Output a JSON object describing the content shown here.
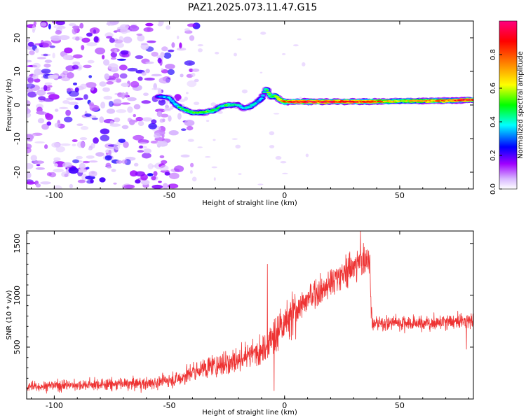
{
  "title": "PAZ1.2025.073.11.47.G15",
  "chart_data": [
    {
      "type": "heatmap",
      "xlabel": "Height of straight line (km)",
      "ylabel": "Frequency (Hz)",
      "xlim": [
        -112,
        82
      ],
      "ylim": [
        -25,
        25
      ],
      "xticks": [
        -100,
        -50,
        0,
        50
      ],
      "yticks": [
        -20,
        -10,
        0,
        10,
        20
      ],
      "colorbar": {
        "label": "Normalized spectral amplitude",
        "range": [
          0,
          1
        ],
        "ticks": [
          "0.0",
          "0.2",
          "0.4",
          "0.6",
          "0.8"
        ],
        "colormap": [
          "#ffffff",
          "#a000ff",
          "#0000ff",
          "#00ffff",
          "#00ff00",
          "#ffff00",
          "#ff8000",
          "#ff0000",
          "#ff0080"
        ]
      },
      "ridge": {
        "x": [
          -55,
          -50,
          -48,
          -45,
          -40,
          -35,
          -30,
          -28,
          -25,
          -20,
          -18,
          -15,
          -12,
          -10,
          -8,
          -6,
          -4,
          -2,
          0,
          5,
          10,
          20,
          30,
          40,
          50,
          60,
          70,
          80
        ],
        "freq": [
          2.5,
          2.2,
          0.5,
          -1,
          -2.3,
          -2.2,
          -1.5,
          -0.5,
          0,
          0,
          -1,
          -0.5,
          0.8,
          2,
          5,
          2.5,
          2.7,
          1.5,
          1,
          1,
          1,
          1,
          1,
          1,
          1.2,
          1.2,
          1.3,
          1.5
        ],
        "amplitude": [
          0.3,
          0.35,
          0.35,
          0.45,
          0.5,
          0.55,
          0.45,
          0.4,
          0.5,
          0.4,
          0.35,
          0.45,
          0.35,
          0.35,
          0.5,
          0.5,
          0.55,
          0.7,
          0.75,
          0.85,
          0.9,
          0.85,
          0.85,
          0.8,
          0.6,
          0.7,
          0.75,
          0.85
        ]
      },
      "noise_region_x": [
        -112,
        -50
      ]
    },
    {
      "type": "line",
      "xlabel": "Height of straight line (km)",
      "ylabel": "SNR (10 * v/v)",
      "xlim": [
        -112,
        82
      ],
      "ylim": [
        0,
        1620
      ],
      "xticks": [
        -100,
        -50,
        0,
        50
      ],
      "yticks": [
        500,
        1000,
        1500
      ],
      "color": "#ee3333",
      "trend": {
        "x": [
          -112,
          -100,
          -80,
          -60,
          -55,
          -50,
          -45,
          -40,
          -35,
          -30,
          -25,
          -20,
          -15,
          -10,
          -8,
          -5,
          0,
          5,
          10,
          20,
          30,
          36,
          37,
          38,
          50,
          60,
          70,
          82
        ],
        "y": [
          120,
          130,
          140,
          150,
          160,
          180,
          200,
          260,
          300,
          320,
          350,
          380,
          420,
          480,
          530,
          600,
          700,
          850,
          960,
          1120,
          1280,
          1350,
          1300,
          720,
          740,
          730,
          740,
          760
        ]
      },
      "spikes": [
        {
          "x": -7.5,
          "y": 1300
        },
        {
          "x": -4.5,
          "y": 80
        },
        {
          "x": 33,
          "y": 1620
        },
        {
          "x": 79,
          "y": 480
        }
      ]
    }
  ]
}
